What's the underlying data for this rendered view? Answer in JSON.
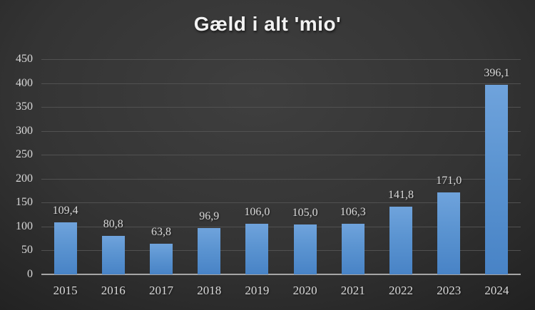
{
  "title": "Gæld i alt 'mio'",
  "chart_data": {
    "type": "bar",
    "title": "Gæld i alt 'mio'",
    "categories": [
      "2015",
      "2016",
      "2017",
      "2018",
      "2019",
      "2020",
      "2021",
      "2022",
      "2023",
      "2024"
    ],
    "values": [
      109.4,
      80.8,
      63.8,
      96.9,
      106.0,
      105.0,
      106.3,
      141.8,
      171.0,
      396.1
    ],
    "value_labels": [
      "109,4",
      "80,8",
      "63,8",
      "96,9",
      "106,0",
      "105,0",
      "106,3",
      "141,8",
      "171,0",
      "396,1"
    ],
    "xlabel": "",
    "ylabel": "",
    "ylim": [
      0,
      450
    ],
    "y_ticks": [
      0,
      50,
      100,
      150,
      200,
      250,
      300,
      350,
      400,
      450
    ],
    "y_tick_labels": [
      "0",
      "50",
      "100",
      "150",
      "200",
      "250",
      "300",
      "350",
      "400",
      "450"
    ],
    "grid": true,
    "legend": false,
    "colors": {
      "bar_top": "#6fa3dc",
      "bar_bottom": "#4883c6",
      "grid": "#515151",
      "axis_line": "#a6a6a6",
      "text": "#d9d9d9",
      "title": "#f2f2f2",
      "background_center": "#3f3f3f",
      "background_edge": "#1f1f1f"
    }
  }
}
